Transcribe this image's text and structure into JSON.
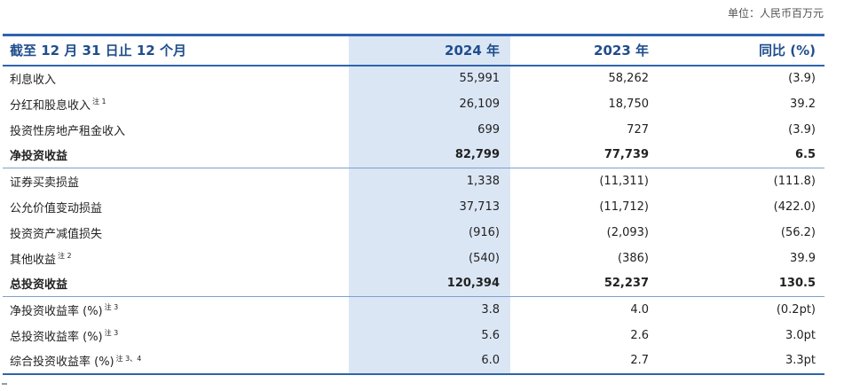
{
  "unit_label": "单位：人民币百万元",
  "header": {
    "period": "截至 12 月 31 日止 12 个月",
    "y2024": "2024 年",
    "y2023": "2023 年",
    "yoy": "同比 (%)"
  },
  "rows": [
    {
      "label": "利息收入",
      "note": "",
      "v2024": "55,991",
      "v2023": "58,262",
      "yoy": "(3.9)"
    },
    {
      "label": "分红和股息收入",
      "note": "注 1",
      "v2024": "26,109",
      "v2023": "18,750",
      "yoy": "39.2"
    },
    {
      "label": "投资性房地产租金收入",
      "note": "",
      "v2024": "699",
      "v2023": "727",
      "yoy": "(3.9)"
    },
    {
      "label": "净投资收益",
      "note": "",
      "v2024": "82,799",
      "v2023": "77,739",
      "yoy": "6.5"
    },
    {
      "label": "证券买卖损益",
      "note": "",
      "v2024": "1,338",
      "v2023": "(11,311)",
      "yoy": "(111.8)"
    },
    {
      "label": "公允价值变动损益",
      "note": "",
      "v2024": "37,713",
      "v2023": "(11,712)",
      "yoy": "(422.0)"
    },
    {
      "label": "投资资产减值损失",
      "note": "",
      "v2024": "(916)",
      "v2023": "(2,093)",
      "yoy": "(56.2)"
    },
    {
      "label": "其他收益",
      "note": "注 2",
      "v2024": "(540)",
      "v2023": "(386)",
      "yoy": "39.9"
    },
    {
      "label": "总投资收益",
      "note": "",
      "v2024": "120,394",
      "v2023": "52,237",
      "yoy": "130.5"
    },
    {
      "label": "净投资收益率 (%)",
      "note": "注 3",
      "v2024": "3.8",
      "v2023": "4.0",
      "yoy": "(0.2pt)"
    },
    {
      "label": "总投资收益率 (%)",
      "note": "注 3",
      "v2024": "5.6",
      "v2023": "2.6",
      "yoy": "3.0pt"
    },
    {
      "label": "综合投资收益率 (%)",
      "note": "注 3、4",
      "v2024": "6.0",
      "v2023": "2.7",
      "yoy": "3.3pt"
    }
  ]
}
